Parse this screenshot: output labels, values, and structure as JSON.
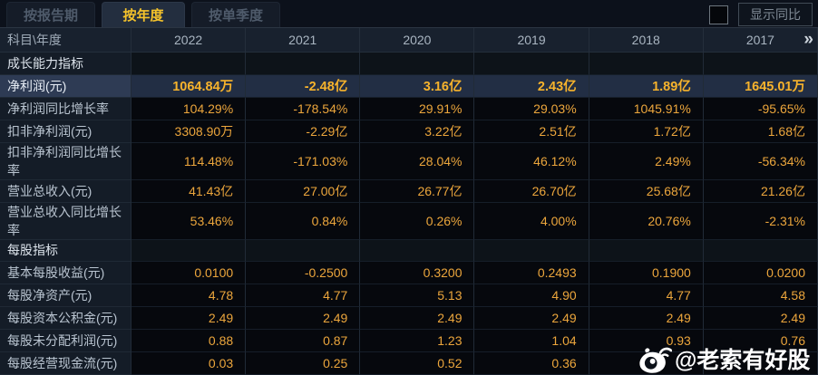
{
  "tabs": [
    {
      "id": "report-period",
      "label": "按报告期",
      "active": false
    },
    {
      "id": "annual",
      "label": "按年度",
      "active": true
    },
    {
      "id": "quarterly",
      "label": "按单季度",
      "active": false
    }
  ],
  "controls": {
    "show_yoy_label": "显示同比",
    "show_yoy_checked": false
  },
  "table": {
    "corner_header": "科目\\年度",
    "year_columns": [
      "2022",
      "2021",
      "2020",
      "2019",
      "2018",
      "2017"
    ],
    "more_years_glyph": "»",
    "rows": [
      {
        "type": "section",
        "label": "成长能力指标",
        "values": [
          "",
          "",
          "",
          "",
          "",
          ""
        ]
      },
      {
        "type": "data",
        "highlight": true,
        "label": "净利润(元)",
        "values": [
          "1064.84万",
          "-2.48亿",
          "3.16亿",
          "2.43亿",
          "1.89亿",
          "1645.01万"
        ]
      },
      {
        "type": "data",
        "label": "净利润同比增长率",
        "values": [
          "104.29%",
          "-178.54%",
          "29.91%",
          "29.03%",
          "1045.91%",
          "-95.65%"
        ]
      },
      {
        "type": "data",
        "label": "扣非净利润(元)",
        "values": [
          "3308.90万",
          "-2.29亿",
          "3.22亿",
          "2.51亿",
          "1.72亿",
          "1.68亿"
        ]
      },
      {
        "type": "data",
        "label": "扣非净利润同比增长率",
        "values": [
          "114.48%",
          "-171.03%",
          "28.04%",
          "46.12%",
          "2.49%",
          "-56.34%"
        ]
      },
      {
        "type": "data",
        "label": "营业总收入(元)",
        "values": [
          "41.43亿",
          "27.00亿",
          "26.77亿",
          "26.70亿",
          "25.68亿",
          "21.26亿"
        ]
      },
      {
        "type": "data",
        "label": "营业总收入同比增长率",
        "values": [
          "53.46%",
          "0.84%",
          "0.26%",
          "4.00%",
          "20.76%",
          "-2.31%"
        ]
      },
      {
        "type": "section",
        "label": "每股指标",
        "values": [
          "",
          "",
          "",
          "",
          "",
          ""
        ]
      },
      {
        "type": "data",
        "label": "基本每股收益(元)",
        "values": [
          "0.0100",
          "-0.2500",
          "0.3200",
          "0.2493",
          "0.1900",
          "0.0200"
        ]
      },
      {
        "type": "data",
        "label": "每股净资产(元)",
        "values": [
          "4.78",
          "4.77",
          "5.13",
          "4.90",
          "4.77",
          "4.58"
        ]
      },
      {
        "type": "data",
        "label": "每股资本公积金(元)",
        "values": [
          "2.49",
          "2.49",
          "2.49",
          "2.49",
          "2.49",
          "2.49"
        ]
      },
      {
        "type": "data",
        "label": "每股未分配利润(元)",
        "values": [
          "0.88",
          "0.87",
          "1.23",
          "1.04",
          "0.93",
          "0.76"
        ]
      },
      {
        "type": "data",
        "label": "每股经营现金流(元)",
        "values": [
          "0.03",
          "0.25",
          "0.52",
          "0.36",
          "",
          ""
        ]
      }
    ]
  },
  "watermark": {
    "icon": "weibo-icon",
    "text": "@老索有好股"
  },
  "colors": {
    "value_gold": "#eca63c",
    "highlight_value_gold": "#f7b32c",
    "active_tab_text": "#f5c32b",
    "highlight_row_bg": "#222e44",
    "label_column_bg": "#141c27"
  }
}
